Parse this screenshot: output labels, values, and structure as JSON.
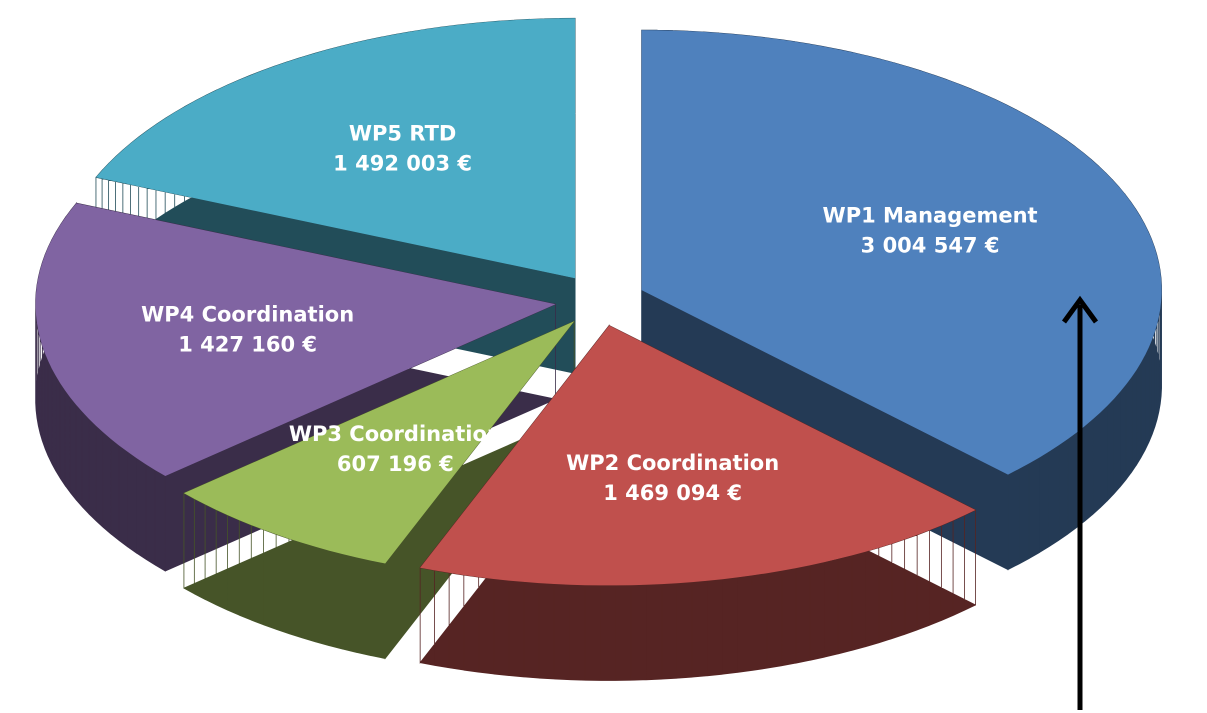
{
  "chart_data": {
    "type": "pie",
    "categories": [
      "WP1 Management",
      "WP2 Coordination",
      "WP3 Coordination",
      "WP4 Coordination",
      "WP5 RTD"
    ],
    "values": [
      3004547,
      1469094,
      607196,
      1427160,
      1492003
    ],
    "value_labels": [
      "3 004 547 €",
      "1 469 094 €",
      "607 196 €",
      "1 427 160 €",
      "1 492 003 €"
    ],
    "colors": [
      "#4f81bd",
      "#c0504d",
      "#9bbb59",
      "#8064a2",
      "#4bacc6"
    ]
  }
}
